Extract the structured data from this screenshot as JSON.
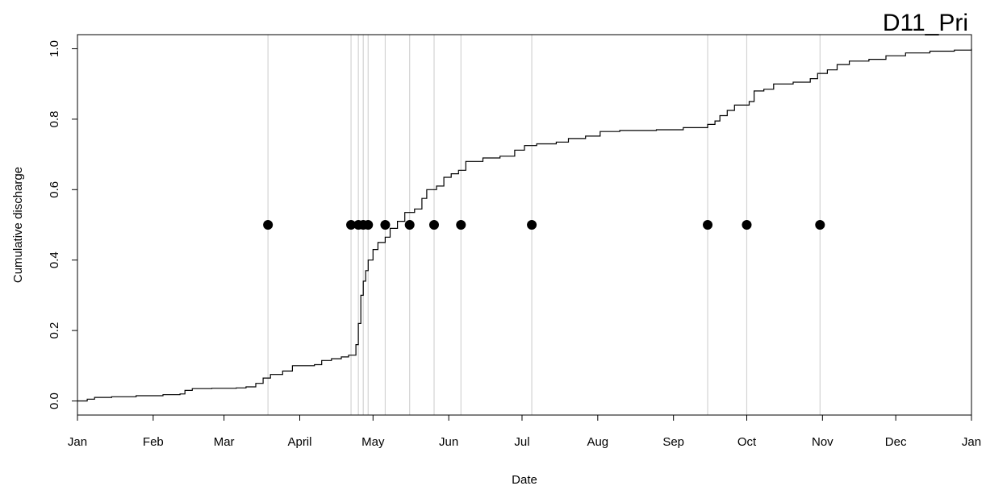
{
  "chart_data": {
    "type": "line",
    "title": "D11_Pri",
    "xlabel": "Date",
    "ylabel": "Cumulative discharge",
    "xlim": [
      "2000-01-01",
      "2001-01-01"
    ],
    "ylim": [
      -0.04,
      1.04
    ],
    "x_ticks": [
      {
        "date": "2000-01-01",
        "label": "Jan"
      },
      {
        "date": "2000-02-01",
        "label": "Feb"
      },
      {
        "date": "2000-03-01",
        "label": "Mar"
      },
      {
        "date": "2000-04-01",
        "label": "April"
      },
      {
        "date": "2000-05-01",
        "label": "May"
      },
      {
        "date": "2000-06-01",
        "label": "Jun"
      },
      {
        "date": "2000-07-01",
        "label": "Jul"
      },
      {
        "date": "2000-08-01",
        "label": "Aug"
      },
      {
        "date": "2000-09-01",
        "label": "Sep"
      },
      {
        "date": "2000-10-01",
        "label": "Oct"
      },
      {
        "date": "2000-11-01",
        "label": "Nov"
      },
      {
        "date": "2000-12-01",
        "label": "Dec"
      },
      {
        "date": "2001-01-01",
        "label": "Jan"
      }
    ],
    "y_ticks": [
      {
        "value": 0.0,
        "label": "0.0"
      },
      {
        "value": 0.2,
        "label": "0.2"
      },
      {
        "value": 0.4,
        "label": "0.4"
      },
      {
        "value": 0.6,
        "label": "0.6"
      },
      {
        "value": 0.8,
        "label": "0.8"
      },
      {
        "value": 1.0,
        "label": "1.0"
      }
    ],
    "grid": false,
    "series": [
      {
        "type": "line",
        "color": "#000000",
        "points": [
          [
            "2000-01-01",
            0.0
          ],
          [
            "2000-01-05",
            0.005
          ],
          [
            "2000-01-08",
            0.01
          ],
          [
            "2000-01-15",
            0.012
          ],
          [
            "2000-01-25",
            0.015
          ],
          [
            "2000-02-05",
            0.018
          ],
          [
            "2000-02-12",
            0.02
          ],
          [
            "2000-02-14",
            0.03
          ],
          [
            "2000-02-17",
            0.035
          ],
          [
            "2000-02-25",
            0.036
          ],
          [
            "2000-03-06",
            0.037
          ],
          [
            "2000-03-10",
            0.04
          ],
          [
            "2000-03-14",
            0.05
          ],
          [
            "2000-03-17",
            0.065
          ],
          [
            "2000-03-20",
            0.075
          ],
          [
            "2000-03-25",
            0.085
          ],
          [
            "2000-03-29",
            0.1
          ],
          [
            "2000-04-07",
            0.103
          ],
          [
            "2000-04-10",
            0.115
          ],
          [
            "2000-04-14",
            0.12
          ],
          [
            "2000-04-18",
            0.125
          ],
          [
            "2000-04-21",
            0.13
          ],
          [
            "2000-04-24",
            0.16
          ],
          [
            "2000-04-25",
            0.22
          ],
          [
            "2000-04-26",
            0.3
          ],
          [
            "2000-04-27",
            0.34
          ],
          [
            "2000-04-28",
            0.37
          ],
          [
            "2000-04-29",
            0.4
          ],
          [
            "2000-05-01",
            0.43
          ],
          [
            "2000-05-03",
            0.45
          ],
          [
            "2000-05-06",
            0.465
          ],
          [
            "2000-05-08",
            0.49
          ],
          [
            "2000-05-11",
            0.51
          ],
          [
            "2000-05-14",
            0.535
          ],
          [
            "2000-05-18",
            0.545
          ],
          [
            "2000-05-21",
            0.575
          ],
          [
            "2000-05-23",
            0.6
          ],
          [
            "2000-05-27",
            0.61
          ],
          [
            "2000-05-30",
            0.635
          ],
          [
            "2000-06-02",
            0.645
          ],
          [
            "2000-06-05",
            0.655
          ],
          [
            "2000-06-08",
            0.68
          ],
          [
            "2000-06-15",
            0.69
          ],
          [
            "2000-06-22",
            0.695
          ],
          [
            "2000-06-28",
            0.712
          ],
          [
            "2000-07-02",
            0.725
          ],
          [
            "2000-07-07",
            0.73
          ],
          [
            "2000-07-15",
            0.735
          ],
          [
            "2000-07-20",
            0.745
          ],
          [
            "2000-07-27",
            0.752
          ],
          [
            "2000-08-02",
            0.765
          ],
          [
            "2000-08-10",
            0.768
          ],
          [
            "2000-08-25",
            0.77
          ],
          [
            "2000-09-05",
            0.776
          ],
          [
            "2000-09-15",
            0.785
          ],
          [
            "2000-09-18",
            0.795
          ],
          [
            "2000-09-20",
            0.81
          ],
          [
            "2000-09-23",
            0.825
          ],
          [
            "2000-09-26",
            0.84
          ],
          [
            "2000-10-02",
            0.85
          ],
          [
            "2000-10-04",
            0.88
          ],
          [
            "2000-10-08",
            0.885
          ],
          [
            "2000-10-12",
            0.9
          ],
          [
            "2000-10-20",
            0.905
          ],
          [
            "2000-10-27",
            0.915
          ],
          [
            "2000-10-30",
            0.93
          ],
          [
            "2000-11-03",
            0.94
          ],
          [
            "2000-11-07",
            0.955
          ],
          [
            "2000-11-12",
            0.965
          ],
          [
            "2000-11-20",
            0.97
          ],
          [
            "2000-11-27",
            0.98
          ],
          [
            "2000-12-05",
            0.988
          ],
          [
            "2000-12-15",
            0.993
          ],
          [
            "2000-12-25",
            0.996
          ],
          [
            "2001-01-01",
            1.0
          ]
        ]
      },
      {
        "type": "scatter",
        "color": "#000000",
        "points": [
          [
            "2000-03-19",
            0.5
          ],
          [
            "2000-04-22",
            0.5
          ],
          [
            "2000-04-25",
            0.5
          ],
          [
            "2000-04-27",
            0.5
          ],
          [
            "2000-04-29",
            0.5
          ],
          [
            "2000-05-06",
            0.5
          ],
          [
            "2000-05-16",
            0.5
          ],
          [
            "2000-05-26",
            0.5
          ],
          [
            "2000-06-06",
            0.5
          ],
          [
            "2000-07-05",
            0.5
          ],
          [
            "2000-09-15",
            0.5
          ],
          [
            "2000-10-01",
            0.5
          ],
          [
            "2000-10-31",
            0.5
          ]
        ]
      }
    ],
    "vlines": {
      "color": "#d3d3d3",
      "dates": [
        "2000-03-19",
        "2000-04-22",
        "2000-04-25",
        "2000-04-27",
        "2000-04-29",
        "2000-05-06",
        "2000-05-16",
        "2000-05-26",
        "2000-06-06",
        "2000-07-05",
        "2000-09-15",
        "2000-10-01",
        "2000-10-31"
      ]
    }
  }
}
